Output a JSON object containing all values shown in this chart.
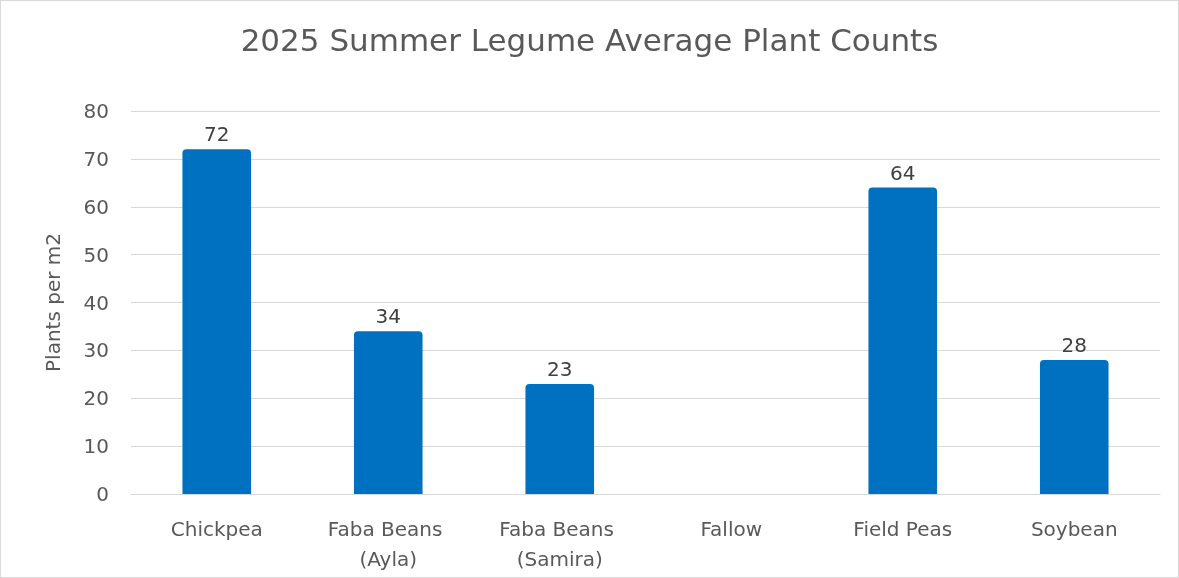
{
  "chart_data": {
    "type": "bar",
    "title": "2025 Summer Legume Average Plant Counts",
    "ylabel": "Plants per m2",
    "categories": [
      "Chickpea",
      "Faba Beans (Ayla)",
      "Faba Beans (Samira)",
      "Fallow",
      "Field Peas",
      "Soybean"
    ],
    "values": [
      72,
      34,
      23,
      null,
      64,
      28
    ],
    "color": "#0070c0",
    "ylim": [
      0,
      80
    ],
    "yticks": [
      0,
      10,
      20,
      30,
      40,
      50,
      60,
      70,
      80
    ],
    "grid": "y",
    "data_labels": true
  }
}
